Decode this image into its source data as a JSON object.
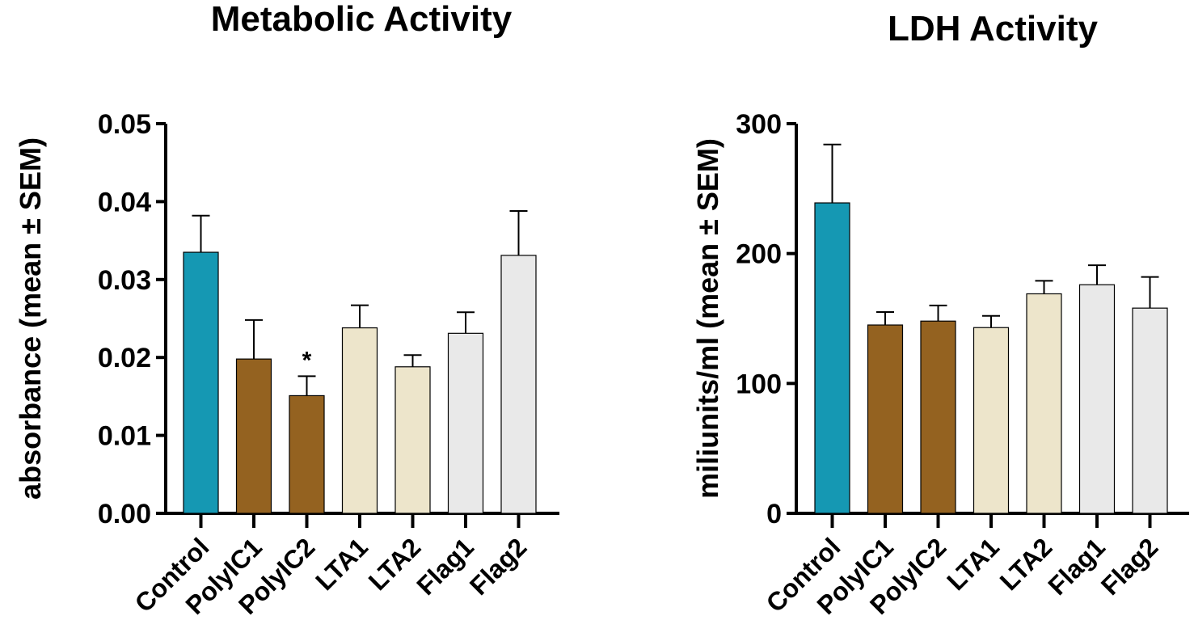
{
  "chart_data": [
    {
      "type": "bar",
      "title": "Metabolic Activity",
      "xlabel": "",
      "ylabel": "absorbance (mean ± SEM)",
      "ylim": [
        0,
        0.05
      ],
      "yticks": [
        "0.00",
        "0.01",
        "0.02",
        "0.03",
        "0.04",
        "0.05"
      ],
      "categories": [
        "Control",
        "PolyIC1",
        "PolyIC2",
        "LTA1",
        "LTA2",
        "Flag1",
        "Flag2"
      ],
      "values": [
        0.0335,
        0.0198,
        0.0151,
        0.0238,
        0.0188,
        0.0231,
        0.0331
      ],
      "sem": [
        0.0047,
        0.005,
        0.0025,
        0.0029,
        0.0015,
        0.0027,
        0.0057
      ],
      "colors": [
        "#1598b3",
        "#946220",
        "#946220",
        "#ede5cb",
        "#ede5cb",
        "#e9e9e9",
        "#e9e9e9"
      ],
      "annotations": [
        "",
        "",
        "*",
        "",
        "",
        "",
        ""
      ]
    },
    {
      "type": "bar",
      "title": "LDH Activity",
      "xlabel": "",
      "ylabel": "miliunits/ml (mean ± SEM)",
      "ylim": [
        0,
        300
      ],
      "yticks": [
        "0",
        "100",
        "200",
        "300"
      ],
      "categories": [
        "Control",
        "PolyIC1",
        "PolyIC2",
        "LTA1",
        "LTA2",
        "Flag1",
        "Flag2"
      ],
      "values": [
        239,
        145,
        148,
        143,
        169,
        176,
        158
      ],
      "sem": [
        45,
        10,
        12,
        9,
        10,
        15,
        24
      ],
      "colors": [
        "#1598b3",
        "#946220",
        "#946220",
        "#ede5cb",
        "#ede5cb",
        "#e9e9e9",
        "#e9e9e9"
      ],
      "annotations": [
        "",
        "",
        "",
        "",
        "",
        "",
        ""
      ]
    }
  ]
}
